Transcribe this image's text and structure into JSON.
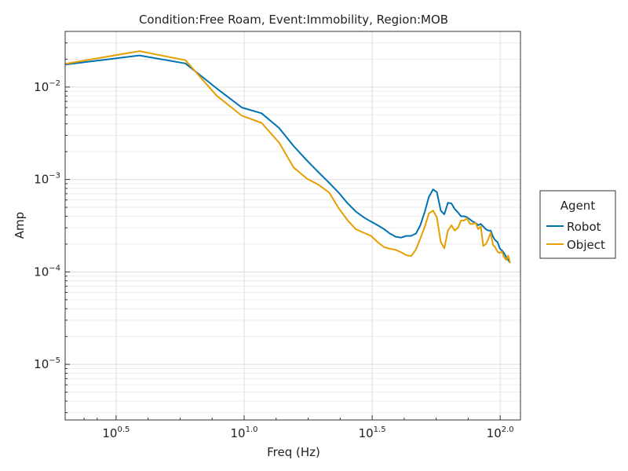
{
  "chart_data": {
    "type": "line",
    "title": "Condition:Free Roam, Event:Immobility, Region:MOB",
    "xlabel": "Freq (Hz)",
    "ylabel": "Amp",
    "x_scale": "log10",
    "y_scale": "log10",
    "xlim": [
      2.0,
      120.0
    ],
    "ylim": [
      2.5e-06,
      0.04
    ],
    "x_major_ticks": [
      {
        "value": 3.1623,
        "base": "10",
        "exp": "0.5"
      },
      {
        "value": 10,
        "base": "10",
        "exp": "1.0"
      },
      {
        "value": 31.623,
        "base": "10",
        "exp": "1.5"
      },
      {
        "value": 100,
        "base": "10",
        "exp": "2.0"
      }
    ],
    "y_major_ticks": [
      {
        "value": 0.01,
        "base": "10",
        "exp": "−2"
      },
      {
        "value": 0.001,
        "base": "10",
        "exp": "−3"
      },
      {
        "value": 0.0001,
        "base": "10",
        "exp": "−4"
      },
      {
        "value": 1e-05,
        "base": "10",
        "exp": "−5"
      }
    ],
    "grid": true,
    "legend": {
      "title": "Agent",
      "position": "right"
    },
    "series": [
      {
        "name": "Robot",
        "color": "#0072b2",
        "points": [
          [
            2.0,
            0.0175
          ],
          [
            3.9,
            0.022
          ],
          [
            5.9,
            0.018
          ],
          [
            7.8,
            0.0097
          ],
          [
            9.8,
            0.006
          ],
          [
            11.7,
            0.0052
          ],
          [
            13.7,
            0.0036
          ],
          [
            15.6,
            0.0023
          ],
          [
            17.6,
            0.0016
          ],
          [
            19.5,
            0.0012
          ],
          [
            21.5,
            0.00092
          ],
          [
            23.4,
            0.00072
          ],
          [
            25.4,
            0.00055
          ],
          [
            27.3,
            0.00045
          ],
          [
            29.3,
            0.00039
          ],
          [
            31.3,
            0.00035
          ],
          [
            33.2,
            0.00032
          ],
          [
            35.2,
            0.00029
          ],
          [
            37.1,
            0.00026
          ],
          [
            39.1,
            0.00024
          ],
          [
            41.0,
            0.000235
          ],
          [
            43.0,
            0.000245
          ],
          [
            44.9,
            0.000245
          ],
          [
            46.9,
            0.00026
          ],
          [
            48.8,
            0.00032
          ],
          [
            50.8,
            0.00045
          ],
          [
            52.7,
            0.00065
          ],
          [
            54.7,
            0.00078
          ],
          [
            56.6,
            0.00073
          ],
          [
            58.6,
            0.00046
          ],
          [
            60.5,
            0.00042
          ],
          [
            62.5,
            0.00056
          ],
          [
            64.5,
            0.00055
          ],
          [
            66.4,
            0.00048
          ],
          [
            68.4,
            0.00044
          ],
          [
            70.3,
            0.0004
          ],
          [
            72.3,
            0.0004
          ],
          [
            74.2,
            0.00039
          ],
          [
            76.2,
            0.00037
          ],
          [
            78.1,
            0.00035
          ],
          [
            80.1,
            0.00034
          ],
          [
            82.0,
            0.00032
          ],
          [
            84.0,
            0.00033
          ],
          [
            85.9,
            0.00031
          ],
          [
            87.9,
            0.00029
          ],
          [
            89.8,
            0.00028
          ],
          [
            91.8,
            0.00028
          ],
          [
            93.8,
            0.00024
          ],
          [
            95.7,
            0.00022
          ],
          [
            97.7,
            0.00021
          ],
          [
            99.6,
            0.00018
          ],
          [
            101.6,
            0.00017
          ],
          [
            103.5,
            0.00016
          ],
          [
            105.5,
            0.000145
          ],
          [
            107.4,
            0.000135
          ],
          [
            109.4,
            0.000125
          ]
        ]
      },
      {
        "name": "Object",
        "color": "#e69f00",
        "points": [
          [
            2.0,
            0.0178
          ],
          [
            3.9,
            0.0245
          ],
          [
            5.9,
            0.0195
          ],
          [
            7.8,
            0.0081
          ],
          [
            9.8,
            0.0049
          ],
          [
            11.7,
            0.0041
          ],
          [
            13.7,
            0.0025
          ],
          [
            15.6,
            0.00135
          ],
          [
            17.6,
            0.00102
          ],
          [
            19.5,
            0.00088
          ],
          [
            21.5,
            0.00072
          ],
          [
            23.4,
            0.00049
          ],
          [
            25.4,
            0.00036
          ],
          [
            27.3,
            0.00029
          ],
          [
            29.3,
            0.000265
          ],
          [
            31.3,
            0.000245
          ],
          [
            33.2,
            0.00021
          ],
          [
            35.2,
            0.000185
          ],
          [
            37.1,
            0.000178
          ],
          [
            39.1,
            0.000173
          ],
          [
            41.0,
            0.000163
          ],
          [
            43.0,
            0.000152
          ],
          [
            44.9,
            0.000148
          ],
          [
            46.9,
            0.000175
          ],
          [
            48.8,
            0.00023
          ],
          [
            50.8,
            0.00031
          ],
          [
            52.7,
            0.00043
          ],
          [
            54.7,
            0.00046
          ],
          [
            56.6,
            0.00039
          ],
          [
            58.6,
            0.00021
          ],
          [
            60.5,
            0.00018
          ],
          [
            62.5,
            0.00028
          ],
          [
            64.5,
            0.00032
          ],
          [
            66.4,
            0.00028
          ],
          [
            68.4,
            0.0003
          ],
          [
            70.3,
            0.00036
          ],
          [
            72.3,
            0.00036
          ],
          [
            74.2,
            0.00038
          ],
          [
            76.2,
            0.00033
          ],
          [
            78.1,
            0.00033
          ],
          [
            80.1,
            0.00034
          ],
          [
            82.0,
            0.00029
          ],
          [
            84.0,
            0.00031
          ],
          [
            85.9,
            0.00019
          ],
          [
            87.9,
            0.0002
          ],
          [
            89.8,
            0.000225
          ],
          [
            91.8,
            0.000265
          ],
          [
            93.8,
            0.000195
          ],
          [
            95.7,
            0.000185
          ],
          [
            97.7,
            0.000165
          ],
          [
            99.6,
            0.00016
          ],
          [
            101.6,
            0.000165
          ],
          [
            103.5,
            0.000145
          ],
          [
            105.5,
            0.000135
          ],
          [
            107.4,
            0.00015
          ],
          [
            109.4,
            0.000125
          ]
        ]
      }
    ]
  }
}
